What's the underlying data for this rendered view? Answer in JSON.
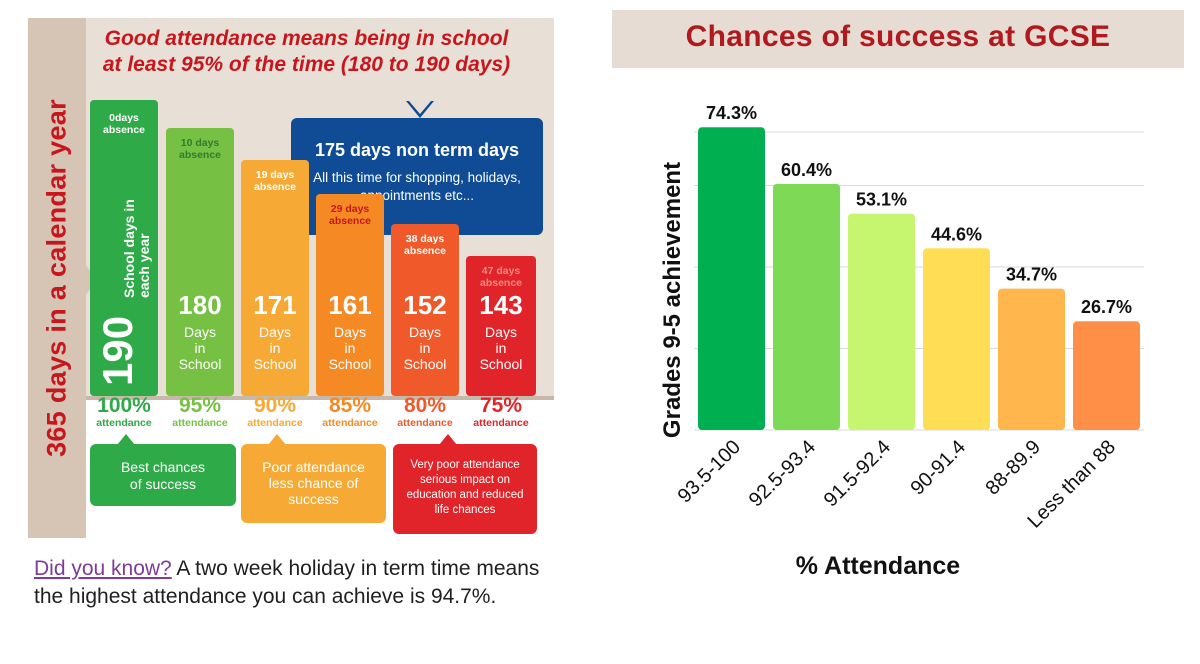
{
  "infographic": {
    "side_label": "365 days in a calendar year",
    "headline": "Good attendance means being in school at least 95% of the time (180 to 190 days)",
    "term_box": {
      "title": "175 days non term days",
      "text": "All this time for shopping, holidays, appointments etc..."
    },
    "bars": [
      {
        "absence": "0days absence",
        "days": "190",
        "days_label": "School days in each year",
        "color": "#2eaa48",
        "absence_color": "#ffffff"
      },
      {
        "absence": "10 days absence",
        "days": "180",
        "days_label": "Days in School",
        "color": "#76c043",
        "absence_color": "#2f7d32"
      },
      {
        "absence": "19 days absence",
        "days": "171",
        "days_label": "Days in School",
        "color": "#f7a935",
        "absence_color": "#ffffff"
      },
      {
        "absence": "29 days absence",
        "days": "161",
        "days_label": "Days in School",
        "color": "#f58a24",
        "absence_color": "#c8161d"
      },
      {
        "absence": "38 days absence",
        "days": "152",
        "days_label": "Days in School",
        "color": "#f0592a",
        "absence_color": "#ffffff"
      },
      {
        "absence": "47 days absence",
        "days": "143",
        "days_label": "Days in School",
        "color": "#e0242a",
        "absence_color": "#f58a82"
      }
    ],
    "attendance": [
      {
        "pct": "100%",
        "label": "attendance",
        "color": "#2eaa48"
      },
      {
        "pct": "95%",
        "label": "attendance",
        "color": "#76c043"
      },
      {
        "pct": "90%",
        "label": "attendance",
        "color": "#f7a935"
      },
      {
        "pct": "85%",
        "label": "attendance",
        "color": "#f58a24"
      },
      {
        "pct": "80%",
        "label": "attendance",
        "color": "#f0592a"
      },
      {
        "pct": "75%",
        "label": "attendance",
        "color": "#e0242a"
      }
    ],
    "chances": [
      {
        "text": "Best chances of success",
        "color": "#2eaa48"
      },
      {
        "text": "Poor attendance less chance of success",
        "color": "#f7a935"
      },
      {
        "text": "Very poor attendance serious impact on education and reduced life chances",
        "color": "#e0242a"
      }
    ],
    "note_highlight": "Did you know?",
    "note_text": " A two week holiday in term time means the highest attendance you can achieve is 94.7%."
  },
  "chart_title": "Chances of success at GCSE",
  "chart_data": {
    "type": "bar",
    "title": "Chances of success at GCSE",
    "xlabel": "% Attendance",
    "ylabel": "Grades 9-5 achievement",
    "categories": [
      "93.5-100",
      "92.5-93.4",
      "91.5-92.4",
      "90-91.4",
      "88-89.9",
      "Less than 88"
    ],
    "values": [
      74.3,
      60.4,
      53.1,
      44.6,
      34.7,
      26.7
    ],
    "value_labels": [
      "74.3%",
      "60.4%",
      "53.1%",
      "44.6%",
      "34.7%",
      "26.7%"
    ],
    "colors": [
      "#00b050",
      "#7ed957",
      "#c6f66f",
      "#ffdd55",
      "#ffb74d",
      "#ff8f47"
    ],
    "ylim": [
      0,
      80
    ],
    "grid": true
  }
}
